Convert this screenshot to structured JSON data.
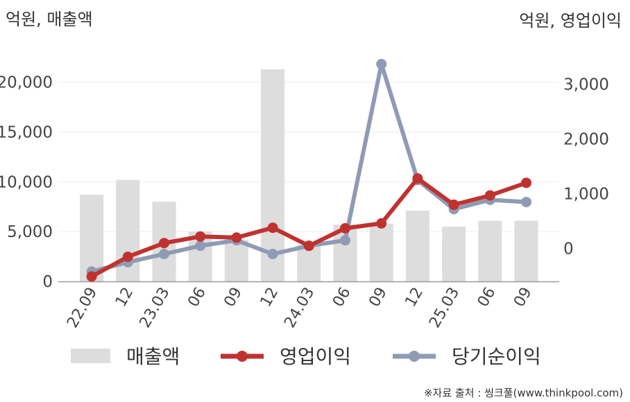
{
  "chart_data": {
    "type": "bar+line",
    "categories": [
      "22.09",
      "12",
      "23.03",
      "06",
      "09",
      "12",
      "24.03",
      "06",
      "09",
      "12",
      "25.03",
      "06",
      "09"
    ],
    "left_axis": {
      "unit": "억원, 매출액",
      "range": [
        0,
        22000
      ],
      "ticks": [
        0,
        5000,
        10000,
        15000,
        20000
      ],
      "tick_labels": [
        "0",
        "5,000",
        "10,000",
        "15,000",
        "20,000"
      ]
    },
    "right_axis": {
      "unit": "억원, 영업이익",
      "range": [
        -600,
        3400
      ],
      "ticks": [
        0,
        1000,
        2000,
        3000
      ],
      "tick_labels": [
        "0",
        "1,000",
        "2,000",
        "3,000"
      ]
    },
    "series": [
      {
        "name": "매출액",
        "type": "bar",
        "axis": "left",
        "color": "#dddddd",
        "values": [
          8700,
          10200,
          8000,
          5000,
          4200,
          21300,
          3700,
          5700,
          5800,
          7100,
          5500,
          6100,
          6100
        ]
      },
      {
        "name": "영업이익",
        "type": "line",
        "axis": "right",
        "color": "#c0322f",
        "values": [
          -510,
          -150,
          100,
          220,
          200,
          380,
          50,
          370,
          460,
          1280,
          800,
          970,
          1200
        ]
      },
      {
        "name": "당기순이익",
        "type": "line",
        "axis": "right",
        "color": "#8f9bb5",
        "values": [
          -420,
          -250,
          -100,
          50,
          150,
          -100,
          50,
          150,
          3370,
          1250,
          720,
          890,
          850
        ]
      }
    ],
    "grid": true,
    "legend_position": "bottom"
  },
  "legend": {
    "items": [
      {
        "label": "매출액",
        "kind": "bar",
        "color": "#dddddd"
      },
      {
        "label": "영업이익",
        "kind": "line",
        "color": "#c0322f"
      },
      {
        "label": "당기순이익",
        "kind": "line",
        "color": "#8f9bb5"
      }
    ]
  },
  "source": "※자료 출처 : 씽크풀(www.thinkpool.com)"
}
